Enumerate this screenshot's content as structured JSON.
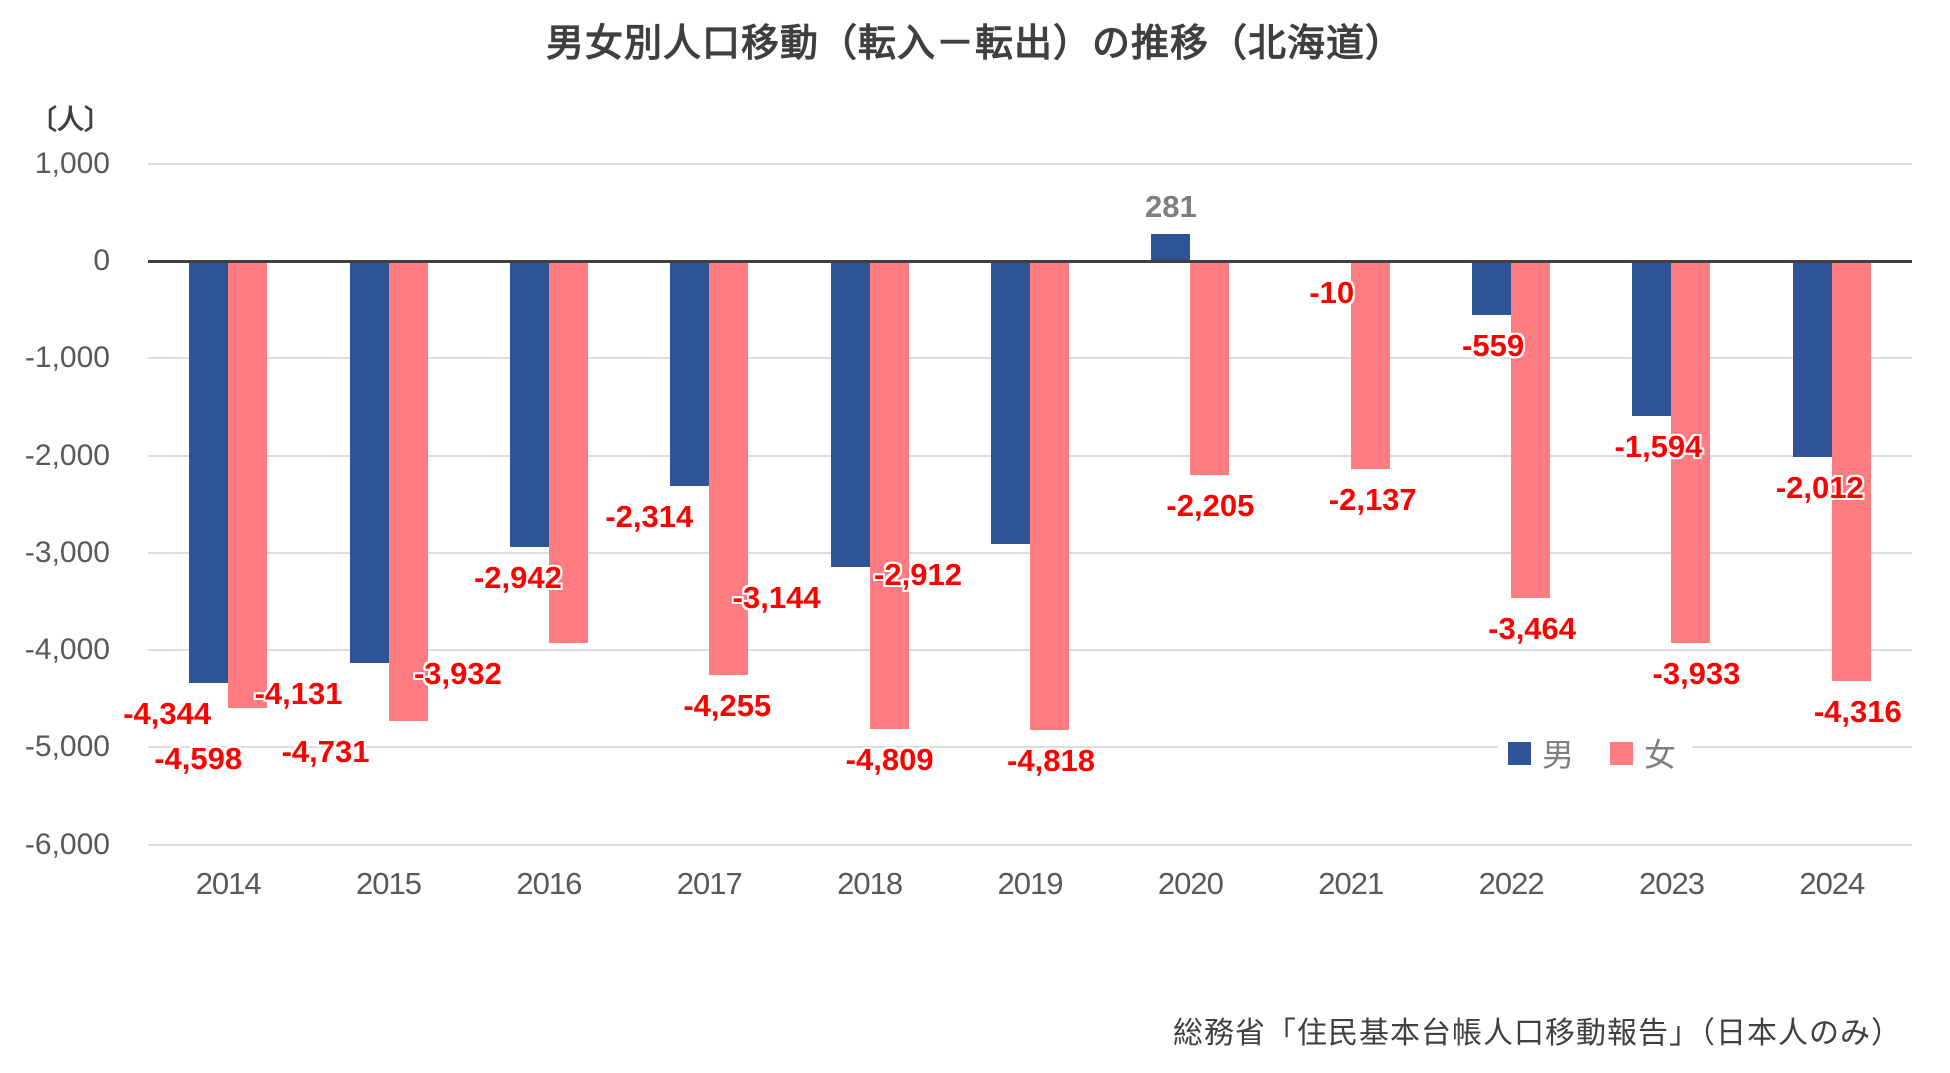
{
  "source_note": "総務省「住民基本台帳人口移動報告」（日本人のみ）",
  "colors": {
    "male_bar": "#2F5496",
    "female_bar": "#FF7C80",
    "negative_label": "#FF0000",
    "positive_label": "#7F7F7F",
    "gridline": "#DCDCDC",
    "zero_line": "#404040",
    "axis_text": "#595959",
    "title_text": "#3F3F3F"
  },
  "chart_data": {
    "type": "bar",
    "title": "男女別人口移動（転入－転出）の推移（北海道）",
    "unit_label": "〔人〕",
    "categories": [
      "2014",
      "2015",
      "2016",
      "2017",
      "2018",
      "2019",
      "2020",
      "2021",
      "2022",
      "2023",
      "2024"
    ],
    "series": [
      {
        "name": "男",
        "color": "#2F5496",
        "values": [
          -4344,
          -4131,
          -2942,
          -2314,
          -3144,
          -2912,
          281,
          -10,
          -559,
          -1594,
          -2012
        ],
        "labels": [
          "-4,344",
          "-4,131",
          "-2,942",
          "-2,314",
          "-3,144",
          "-2,912",
          "281",
          "-10",
          "-559",
          "-1,594",
          "-2,012"
        ]
      },
      {
        "name": "女",
        "color": "#FF7C80",
        "values": [
          -4598,
          -4731,
          -3932,
          -4255,
          -4809,
          -4818,
          -2205,
          -2137,
          -3464,
          -3933,
          -4316
        ],
        "labels": [
          "-4,598",
          "-4,731",
          "-3,932",
          "-4,255",
          "-4,809",
          "-4,818",
          "-2,205",
          "-2,137",
          "-3,464",
          "-3,933",
          "-4,316"
        ]
      }
    ],
    "ylim": [
      -6000,
      1000
    ],
    "yticks": [
      1000,
      0,
      -1000,
      -2000,
      -3000,
      -4000,
      -5000,
      -6000
    ],
    "ytick_labels": [
      "1,000",
      "0",
      "-1,000",
      "-2,000",
      "-3,000",
      "-4,000",
      "-5,000",
      "-6,000"
    ],
    "grid": true,
    "legend_position": "inside-bottom-right",
    "label_layout_hints": {
      "male_dx": [
        -61,
        -90,
        -31,
        -60,
        -93,
        -112,
        0,
        -19,
        -18,
        -13,
        -12
      ],
      "female_dx": [
        -30,
        -63,
        -91,
        18,
        20,
        21,
        20,
        22,
        21,
        25,
        26
      ],
      "female_dy": [
        20,
        0,
        0,
        0,
        0,
        0,
        0,
        0,
        0,
        0,
        0
      ]
    }
  }
}
